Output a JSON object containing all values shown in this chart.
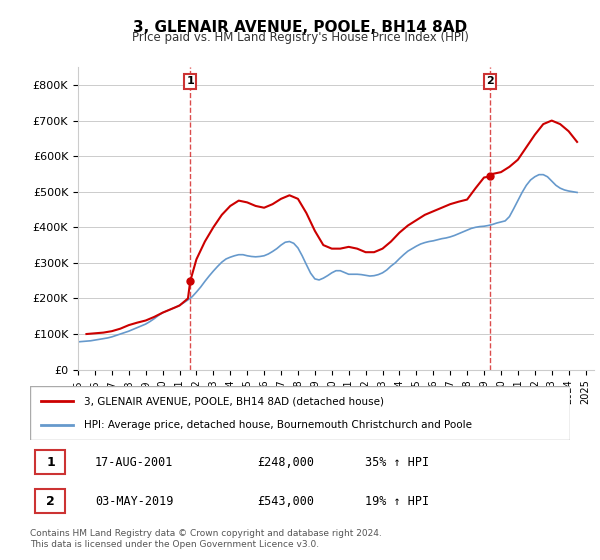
{
  "title": "3, GLENAIR AVENUE, POOLE, BH14 8AD",
  "subtitle": "Price paid vs. HM Land Registry's House Price Index (HPI)",
  "ylabel": "",
  "ylim": [
    0,
    850000
  ],
  "yticks": [
    0,
    100000,
    200000,
    300000,
    400000,
    500000,
    600000,
    700000,
    800000
  ],
  "ytick_labels": [
    "£0",
    "£100K",
    "£200K",
    "£300K",
    "£400K",
    "£500K",
    "£600K",
    "£700K",
    "£800K"
  ],
  "x_start_year": 1995,
  "x_end_year": 2025,
  "marker1": {
    "index": 6.5,
    "year_label": "17-AUG-2001",
    "price": 248000,
    "pct": "35%",
    "direction": "↑",
    "label": "1"
  },
  "marker2": {
    "index": 24.3,
    "year_label": "03-MAY-2019",
    "price": 543000,
    "pct": "19%",
    "direction": "↑",
    "label": "2"
  },
  "legend_line1": "3, GLENAIR AVENUE, POOLE, BH14 8AD (detached house)",
  "legend_line2": "HPI: Average price, detached house, Bournemouth Christchurch and Poole",
  "table_row1": [
    "1",
    "17-AUG-2001",
    "£248,000",
    "35% ↑ HPI"
  ],
  "table_row2": [
    "2",
    "03-MAY-2019",
    "£543,000",
    "19% ↑ HPI"
  ],
  "footer": "Contains HM Land Registry data © Crown copyright and database right 2024.\nThis data is licensed under the Open Government Licence v3.0.",
  "red_color": "#cc0000",
  "blue_color": "#6699cc",
  "marker_color": "#cc0000",
  "hpi_x": [
    1995.0,
    1995.25,
    1995.5,
    1995.75,
    1996.0,
    1996.25,
    1996.5,
    1996.75,
    1997.0,
    1997.25,
    1997.5,
    1997.75,
    1998.0,
    1998.25,
    1998.5,
    1998.75,
    1999.0,
    1999.25,
    1999.5,
    1999.75,
    2000.0,
    2000.25,
    2000.5,
    2000.75,
    2001.0,
    2001.25,
    2001.5,
    2001.75,
    2002.0,
    2002.25,
    2002.5,
    2002.75,
    2003.0,
    2003.25,
    2003.5,
    2003.75,
    2004.0,
    2004.25,
    2004.5,
    2004.75,
    2005.0,
    2005.25,
    2005.5,
    2005.75,
    2006.0,
    2006.25,
    2006.5,
    2006.75,
    2007.0,
    2007.25,
    2007.5,
    2007.75,
    2008.0,
    2008.25,
    2008.5,
    2008.75,
    2009.0,
    2009.25,
    2009.5,
    2009.75,
    2010.0,
    2010.25,
    2010.5,
    2010.75,
    2011.0,
    2011.25,
    2011.5,
    2011.75,
    2012.0,
    2012.25,
    2012.5,
    2012.75,
    2013.0,
    2013.25,
    2013.5,
    2013.75,
    2014.0,
    2014.25,
    2014.5,
    2014.75,
    2015.0,
    2015.25,
    2015.5,
    2015.75,
    2016.0,
    2016.25,
    2016.5,
    2016.75,
    2017.0,
    2017.25,
    2017.5,
    2017.75,
    2018.0,
    2018.25,
    2018.5,
    2018.75,
    2019.0,
    2019.25,
    2019.5,
    2019.75,
    2020.0,
    2020.25,
    2020.5,
    2020.75,
    2021.0,
    2021.25,
    2021.5,
    2021.75,
    2022.0,
    2022.25,
    2022.5,
    2022.75,
    2023.0,
    2023.25,
    2023.5,
    2023.75,
    2024.0,
    2024.25,
    2024.5
  ],
  "hpi_y": [
    78000,
    79000,
    80000,
    81000,
    83000,
    85000,
    87000,
    89000,
    92000,
    96000,
    100000,
    104000,
    108000,
    113000,
    118000,
    123000,
    128000,
    135000,
    143000,
    152000,
    160000,
    165000,
    170000,
    175000,
    181000,
    188000,
    196000,
    205000,
    218000,
    232000,
    248000,
    263000,
    277000,
    290000,
    302000,
    311000,
    316000,
    320000,
    323000,
    323000,
    320000,
    318000,
    317000,
    318000,
    320000,
    325000,
    332000,
    340000,
    350000,
    358000,
    360000,
    355000,
    342000,
    320000,
    295000,
    271000,
    255000,
    252000,
    257000,
    264000,
    272000,
    278000,
    278000,
    273000,
    268000,
    268000,
    268000,
    267000,
    265000,
    263000,
    264000,
    267000,
    272000,
    280000,
    291000,
    300000,
    312000,
    323000,
    333000,
    340000,
    347000,
    353000,
    357000,
    360000,
    362000,
    365000,
    368000,
    370000,
    373000,
    377000,
    382000,
    387000,
    392000,
    397000,
    400000,
    402000,
    403000,
    405000,
    408000,
    412000,
    415000,
    418000,
    430000,
    452000,
    475000,
    498000,
    518000,
    533000,
    542000,
    548000,
    548000,
    542000,
    530000,
    518000,
    510000,
    505000,
    502000,
    500000,
    498000
  ],
  "price_x": [
    1995.5,
    1996.0,
    1996.5,
    1997.0,
    1997.5,
    1998.0,
    1998.5,
    1999.0,
    1999.5,
    2000.0,
    2000.5,
    2001.0,
    2001.5,
    2001.63,
    2002.0,
    2002.5,
    2003.0,
    2003.5,
    2004.0,
    2004.5,
    2005.0,
    2005.5,
    2006.0,
    2006.5,
    2007.0,
    2007.5,
    2008.0,
    2008.5,
    2009.0,
    2009.5,
    2010.0,
    2010.5,
    2011.0,
    2011.5,
    2012.0,
    2012.5,
    2013.0,
    2013.5,
    2014.0,
    2014.5,
    2015.0,
    2015.5,
    2016.0,
    2016.5,
    2017.0,
    2017.5,
    2018.0,
    2018.5,
    2019.0,
    2019.37,
    2019.5,
    2020.0,
    2020.5,
    2021.0,
    2021.5,
    2022.0,
    2022.5,
    2023.0,
    2023.5,
    2024.0,
    2024.5
  ],
  "price_y": [
    100000,
    102000,
    104000,
    108000,
    115000,
    125000,
    132000,
    138000,
    148000,
    160000,
    170000,
    180000,
    200000,
    248000,
    310000,
    360000,
    400000,
    435000,
    460000,
    475000,
    470000,
    460000,
    455000,
    465000,
    480000,
    490000,
    480000,
    440000,
    390000,
    350000,
    340000,
    340000,
    345000,
    340000,
    330000,
    330000,
    340000,
    360000,
    385000,
    405000,
    420000,
    435000,
    445000,
    455000,
    465000,
    472000,
    478000,
    510000,
    540000,
    543000,
    550000,
    555000,
    570000,
    590000,
    625000,
    660000,
    690000,
    700000,
    690000,
    670000,
    640000
  ]
}
